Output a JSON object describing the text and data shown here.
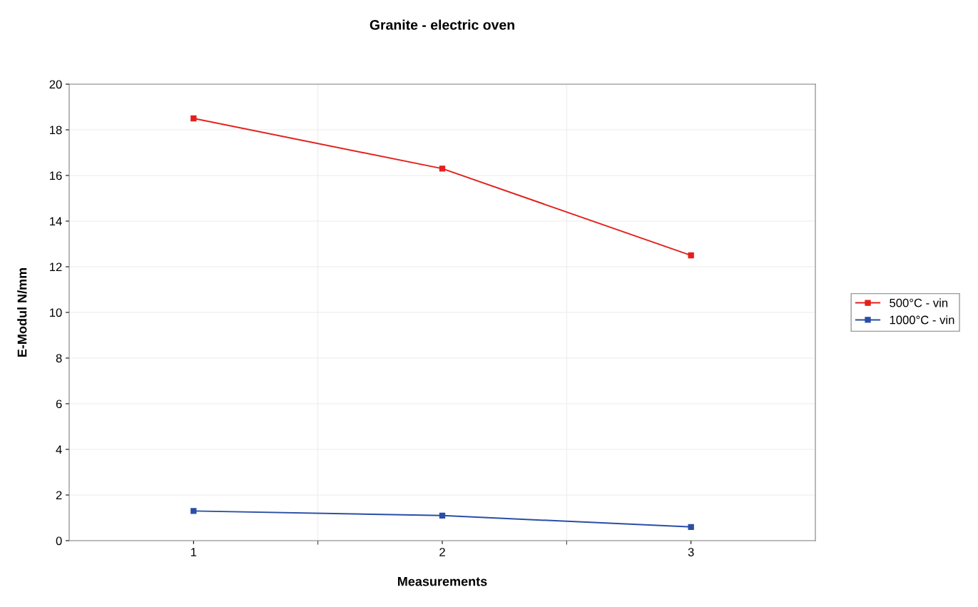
{
  "chart_data": {
    "type": "line",
    "title": "Granite - electric oven",
    "xlabel": "Measurements",
    "ylabel": "E-Modul N/mm",
    "categories": [
      "1",
      "2",
      "3"
    ],
    "series": [
      {
        "name": "500°C - vin",
        "color": "#e3201b",
        "values": [
          18.5,
          16.3,
          12.5
        ]
      },
      {
        "name": "1000°C - vin",
        "color": "#2a4ea6",
        "values": [
          1.3,
          1.1,
          0.6
        ]
      }
    ],
    "ylim": [
      0,
      20
    ],
    "yticks": [
      0,
      2,
      4,
      6,
      8,
      10,
      12,
      14,
      16,
      18,
      20
    ],
    "grid": true,
    "legend": "right",
    "marker": "square",
    "line_style": "solid"
  }
}
